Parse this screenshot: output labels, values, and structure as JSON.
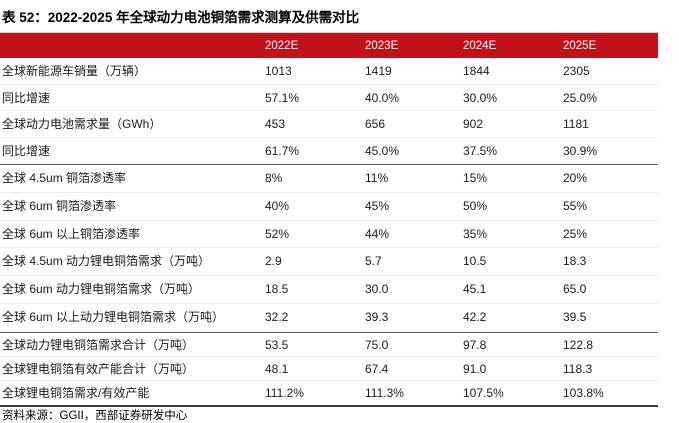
{
  "title": "表 52：2022-2025 年全球动力电池铜箔需求测算及供需对比",
  "colors": {
    "header_bg": "#C1121C",
    "header_text": "#FFFFFF",
    "body_text": "#1A1A1A",
    "group_separator": "#5A5A5A",
    "row_line": "#ECECEC",
    "bottom_border": "#3A3A3A"
  },
  "table": {
    "header": {
      "columns": [
        "2022E",
        "2023E",
        "2024E",
        "2025E"
      ]
    },
    "groups": [
      {
        "rows": [
          {
            "label": "全球新能源车销量（万辆）",
            "values": [
              "1013",
              "1419",
              "1844",
              "2305"
            ]
          },
          {
            "label": "同比增速",
            "values": [
              "57.1%",
              "40.0%",
              "30.0%",
              "25.0%"
            ]
          },
          {
            "label": "全球动力电池需求量（GWh）",
            "values": [
              "453",
              "656",
              "902",
              "1181"
            ]
          },
          {
            "label": "同比增速",
            "values": [
              "61.7%",
              "45.0%",
              "37.5%",
              "30.9%"
            ]
          }
        ]
      },
      {
        "rows": [
          {
            "label": "全球 4.5um 铜箔渗透率",
            "values": [
              "8%",
              "11%",
              "15%",
              "20%"
            ]
          },
          {
            "label": "全球 6um 铜箔渗透率",
            "values": [
              "40%",
              "45%",
              "50%",
              "55%"
            ]
          },
          {
            "label": "全球 6um 以上铜箔渗透率",
            "values": [
              "52%",
              "44%",
              "35%",
              "25%"
            ]
          },
          {
            "label": "全球 4.5um 动力锂电铜箔需求（万吨）",
            "values": [
              "2.9",
              "5.7",
              "10.5",
              "18.3"
            ]
          },
          {
            "label": "全球 6um 动力锂电铜箔需求（万吨）",
            "values": [
              "18.5",
              "30.0",
              "45.1",
              "65.0"
            ]
          },
          {
            "label": "全球 6um 以上动力锂电铜箔需求（万吨）",
            "values": [
              "32.2",
              "39.3",
              "42.2",
              "39.5"
            ]
          }
        ]
      },
      {
        "rows": [
          {
            "label": "全球动力锂电铜箔需求合计（万吨）",
            "values": [
              "53.5",
              "75.0",
              "97.8",
              "122.8"
            ]
          },
          {
            "label": "全球锂电铜箔有效产能合计（万吨）",
            "values": [
              "48.1",
              "67.4",
              "91.0",
              "118.3"
            ]
          },
          {
            "label": "全球锂电铜箔需求/有效产能",
            "values": [
              "111.2%",
              "111.3%",
              "107.5%",
              "103.8%"
            ]
          }
        ]
      }
    ]
  },
  "footer": {
    "source": "资料来源：GGII，西部证券研发中心"
  }
}
